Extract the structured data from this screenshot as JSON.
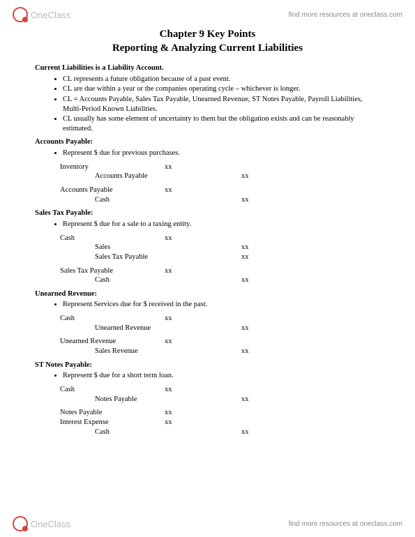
{
  "brand": {
    "name": "OneClass",
    "link_text": "find more resources at oneclass.com",
    "logo_border_color": "#d4463a",
    "logo_text_color": "#b8b8b8"
  },
  "title": "Chapter 9 Key Points",
  "subtitle": "Reporting & Analyzing Current Liabilities",
  "intro_head": "Current Liabilities is a Liability Account.",
  "intro_bullets": [
    "CL represents a future obligation because of a past event.",
    "CL are due within a year or the companies operating cycle – whichever is longer.",
    "CL = Accounts Payable, Sales Tax Payable, Unearned Revenue, ST Notes Payable, Payroll Liabilities, Multi-Period Known Liabilities.",
    "CL usually has some element of uncertainty to them but the obligation exists and can be reasonably estimated."
  ],
  "sections": {
    "ap": {
      "head": "Accounts Payable:",
      "bullet": "Represent $ due for previous purchases.",
      "entry1": [
        {
          "account": "Inventory",
          "dr": "xx",
          "cr": ""
        },
        {
          "account": "Accounts Payable",
          "dr": "",
          "cr": "xx",
          "indent": true
        }
      ],
      "entry2": [
        {
          "account": "Accounts Payable",
          "dr": "xx",
          "cr": ""
        },
        {
          "account": "Cash",
          "dr": "",
          "cr": "xx",
          "indent": true
        }
      ]
    },
    "st": {
      "head": "Sales Tax Payable:",
      "bullet": "Represent $ due for a sale to a taxing entity.",
      "entry1": [
        {
          "account": "Cash",
          "dr": "xx",
          "cr": ""
        },
        {
          "account": "Sales",
          "dr": "",
          "cr": "xx",
          "indent": true
        },
        {
          "account": "Sales Tax Payable",
          "dr": "",
          "cr": "xx",
          "indent": true
        }
      ],
      "entry2": [
        {
          "account": "Sales Tax Payable",
          "dr": "xx",
          "cr": ""
        },
        {
          "account": "Cash",
          "dr": "",
          "cr": "xx",
          "indent": true
        }
      ]
    },
    "ur": {
      "head": "Unearned Revenue:",
      "bullet": "Represent Services due for $ received in the past.",
      "entry1": [
        {
          "account": "Cash",
          "dr": "xx",
          "cr": ""
        },
        {
          "account": "Unearned Revenue",
          "dr": "",
          "cr": "xx",
          "indent": true
        }
      ],
      "entry2": [
        {
          "account": "Unearned Revenue",
          "dr": "xx",
          "cr": ""
        },
        {
          "account": "Sales Revenue",
          "dr": "",
          "cr": "xx",
          "indent": true
        }
      ]
    },
    "np": {
      "head": "ST Notes Payable:",
      "bullet": "Represent $ due for a short term loan.",
      "entry1": [
        {
          "account": "Cash",
          "dr": "xx",
          "cr": ""
        },
        {
          "account": "Notes Payable",
          "dr": "",
          "cr": "xx",
          "indent": true
        }
      ],
      "entry2": [
        {
          "account": "Notes Payable",
          "dr": "xx",
          "cr": ""
        },
        {
          "account": "Interest Expense",
          "dr": "xx",
          "cr": ""
        },
        {
          "account": "Cash",
          "dr": "",
          "cr": "xx",
          "indent": true
        }
      ]
    }
  }
}
